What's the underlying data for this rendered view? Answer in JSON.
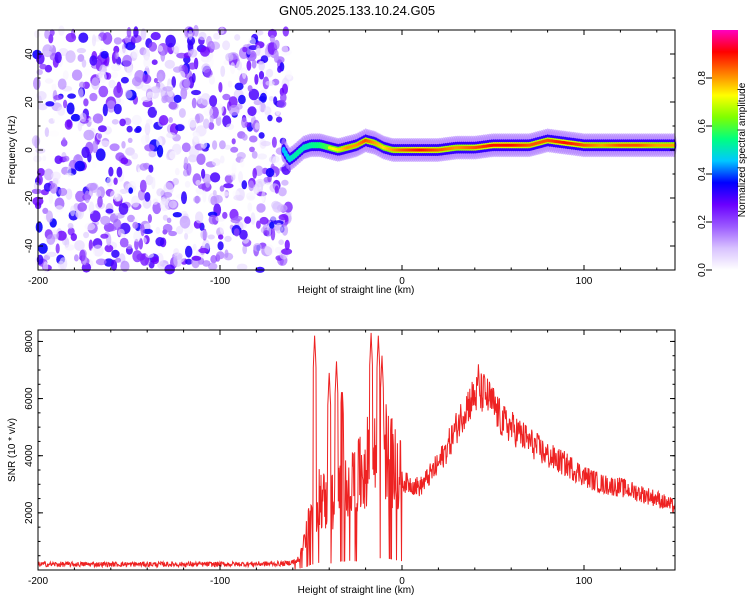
{
  "title": "GN05.2025.133.10.24.G05",
  "chart_data": [
    {
      "type": "heatmap",
      "xlabel": "Height of straight line (km)",
      "ylabel": "Frequency (Hz)",
      "xlim": [
        -200,
        150
      ],
      "ylim": [
        -50,
        50
      ],
      "xticks": [
        -200,
        -100,
        0,
        100
      ],
      "yticks": [
        -40,
        -20,
        0,
        20,
        40
      ],
      "colorbar": {
        "label": "Normalized spectral amplitude",
        "range": [
          0,
          1
        ],
        "ticks": [
          0.0,
          0.2,
          0.4,
          0.6,
          0.8
        ],
        "tick_labels": [
          "0.0",
          "0.2",
          "0.4",
          "0.6",
          "0.8"
        ],
        "colormap": [
          "#ffffff",
          "#d8c2ff",
          "#9b59ff",
          "#6a00ff",
          "#0000ff",
          "#00c8ff",
          "#00ff80",
          "#7fff00",
          "#ffff00",
          "#ff8000",
          "#ff0000",
          "#ff00c0"
        ]
      },
      "noise_region": {
        "x_range": [
          -200,
          -65
        ],
        "description_level": 0.3
      },
      "signal_track": {
        "x": [
          -65,
          -62,
          -60,
          -57,
          -54,
          -50,
          -45,
          -40,
          -35,
          -30,
          -25,
          -20,
          -15,
          -10,
          -5,
          0,
          10,
          20,
          30,
          40,
          50,
          60,
          70,
          80,
          90,
          100,
          110,
          120,
          130,
          140,
          150
        ],
        "y": [
          0,
          -4,
          -3,
          -1,
          1,
          2,
          2,
          1,
          0,
          1,
          2,
          4,
          3,
          1,
          0,
          0,
          0,
          0,
          1,
          1,
          2,
          2,
          2,
          4,
          3,
          2,
          2,
          2,
          2,
          2,
          2
        ],
        "amplitude": [
          0.4,
          0.45,
          0.5,
          0.55,
          0.5,
          0.55,
          0.6,
          0.7,
          0.75,
          0.8,
          0.8,
          0.85,
          0.8,
          0.75,
          0.8,
          0.85,
          0.9,
          0.85,
          0.8,
          0.85,
          0.9,
          0.9,
          0.85,
          0.85,
          0.9,
          0.85,
          0.8,
          0.85,
          0.85,
          0.8,
          0.8
        ]
      }
    },
    {
      "type": "line",
      "xlabel": "Height of straight line (km)",
      "ylabel": "SNR (10 * v/v)",
      "xlim": [
        -200,
        150
      ],
      "ylim": [
        0,
        8400
      ],
      "xticks": [
        -200,
        -100,
        0,
        100
      ],
      "yticks": [
        2000,
        4000,
        6000,
        8000
      ],
      "color": "#ee2222",
      "envelope": {
        "x": [
          -200,
          -100,
          -65,
          -58,
          -55,
          -50,
          -45,
          -40,
          -35,
          -30,
          -25,
          -20,
          -15,
          -10,
          -5,
          0,
          5,
          10,
          15,
          20,
          25,
          30,
          35,
          40,
          45,
          50,
          55,
          60,
          70,
          80,
          90,
          100,
          110,
          120,
          130,
          140,
          150
        ],
        "y": [
          200,
          200,
          220,
          300,
          700,
          1800,
          2600,
          2200,
          2800,
          3300,
          3000,
          3700,
          3900,
          4300,
          3600,
          3100,
          3000,
          2900,
          3300,
          3700,
          4300,
          5000,
          5700,
          6100,
          6200,
          5800,
          5200,
          5000,
          4500,
          4000,
          3700,
          3300,
          3000,
          2900,
          2700,
          2500,
          2200
        ]
      },
      "spikes": [
        {
          "x": -48,
          "y": 8200
        },
        {
          "x": -40,
          "y": 6900
        },
        {
          "x": -36,
          "y": 7300
        },
        {
          "x": -33,
          "y": 6600
        },
        {
          "x": -17,
          "y": 8300
        },
        {
          "x": -13,
          "y": 8200
        },
        {
          "x": -11,
          "y": 7500
        },
        {
          "x": 42,
          "y": 7200
        }
      ]
    }
  ]
}
